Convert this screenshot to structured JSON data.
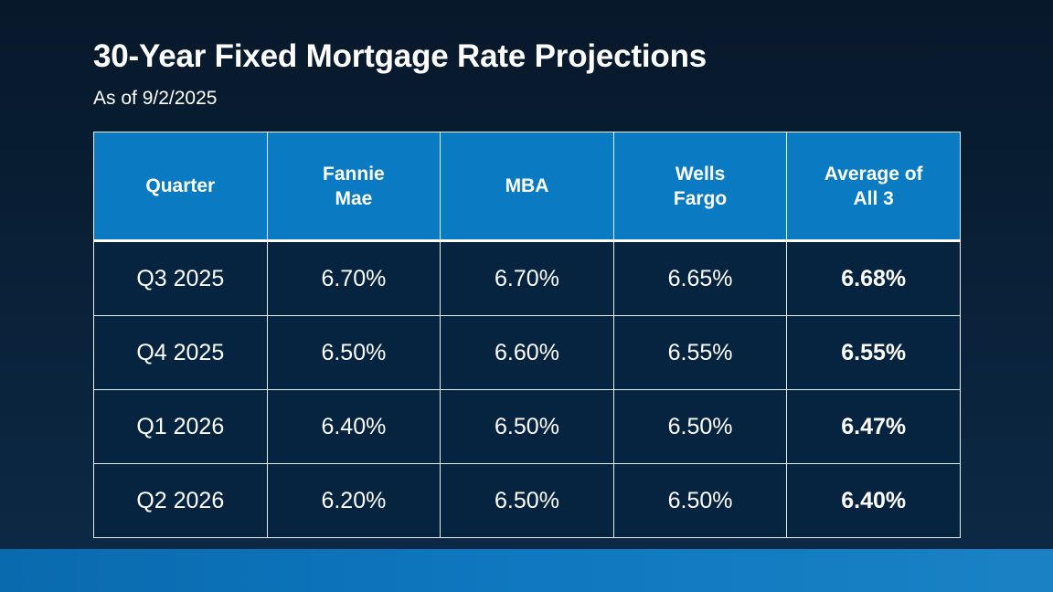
{
  "header": {
    "title": "30-Year Fixed Mortgage Rate Projections",
    "subtitle": "As of 9/2/2025"
  },
  "table": {
    "columns": [
      "Quarter",
      "Fannie Mae",
      "MBA",
      "Wells Fargo",
      "Average of All 3"
    ],
    "rows": [
      [
        "Q3 2025",
        "6.70%",
        "6.70%",
        "6.65%",
        "6.68%"
      ],
      [
        "Q4 2025",
        "6.50%",
        "6.60%",
        "6.55%",
        "6.55%"
      ],
      [
        "Q1 2026",
        "6.40%",
        "6.50%",
        "6.50%",
        "6.47%"
      ],
      [
        "Q2 2026",
        "6.20%",
        "6.50%",
        "6.50%",
        "6.40%"
      ]
    ]
  }
}
